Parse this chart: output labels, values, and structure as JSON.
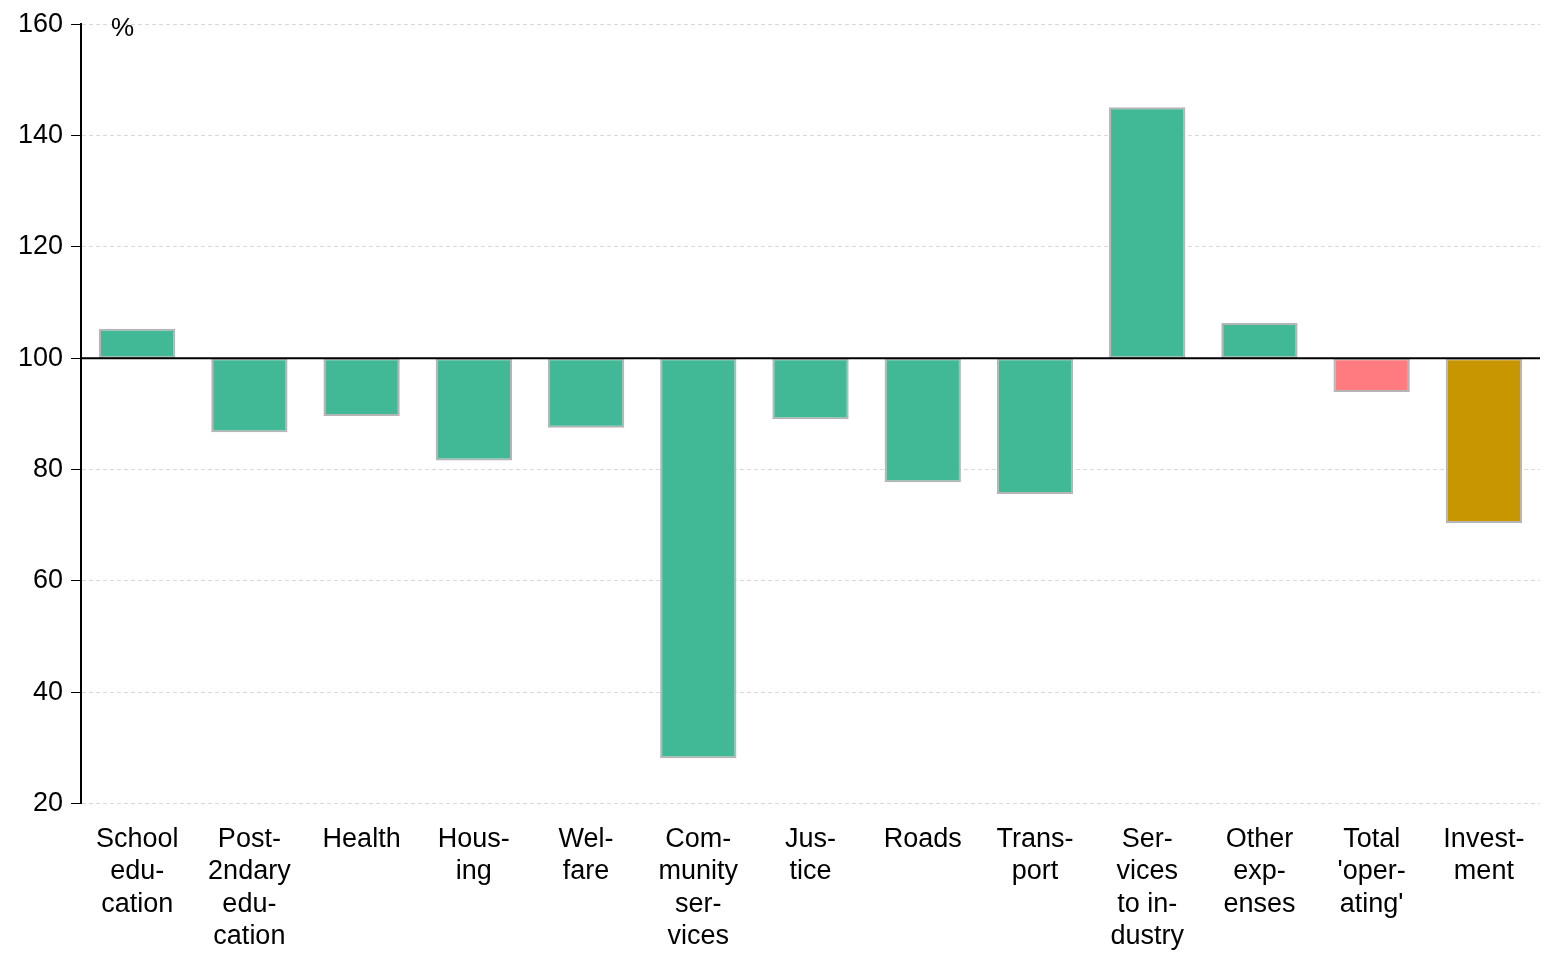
{
  "chart_data": {
    "type": "bar",
    "ylabel": "%",
    "categories": [
      "School\nedu-\ncation",
      "Post-\n2ndary\nedu-\ncation",
      "Health",
      "Hous-\ning",
      "Wel-\nfare",
      "Com-\nmunity\nser-\nvices",
      "Jus-\ntice",
      "Roads",
      "Trans-\nport",
      "Ser-\nvices\nto in-\ndustry",
      "Other\nexp-\nenses",
      "Total\n'oper-\nating'",
      "Invest-\nment"
    ],
    "base": [
      100,
      100,
      100,
      100,
      100,
      100,
      100,
      100,
      100,
      100,
      100,
      100,
      100
    ],
    "values": [
      5.3,
      -13.3,
      -10.4,
      -18.4,
      -12.5,
      -71.9,
      -11.0,
      -22.3,
      -24.4,
      45.1,
      6.3,
      -6.1,
      -29.6
    ],
    "colors": [
      "#41b997",
      "#41b997",
      "#41b997",
      "#41b997",
      "#41b997",
      "#41b997",
      "#41b997",
      "#41b997",
      "#41b997",
      "#41b997",
      "#41b997",
      "#ff7b7f",
      "#c89600"
    ],
    "ylim": [
      20,
      160
    ],
    "yticks": [
      20,
      40,
      60,
      80,
      100,
      120,
      140,
      160
    ],
    "ref_lines": [
      {
        "axis": "y",
        "value": 100,
        "color": "#000000"
      }
    ],
    "grid": "y",
    "legend": false
  }
}
